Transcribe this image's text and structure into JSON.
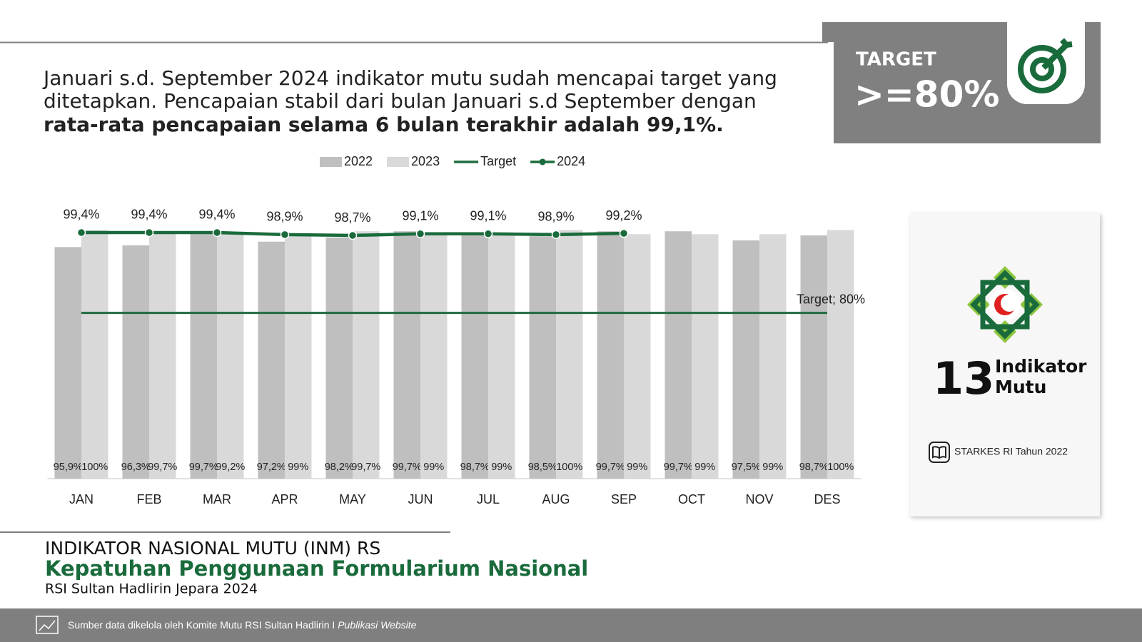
{
  "summary": {
    "lines": [
      "Januari s.d. September 2024 indikator mutu sudah mencapai target yang",
      "ditetapkan. Pencapaian stabil dari bulan Januari s.d September dengan",
      "rata-rata pencapaian selama 6 bulan terakhir adalah 99,1%."
    ]
  },
  "target_box": {
    "label": "TARGET",
    "value": ">=80%"
  },
  "side_card": {
    "number": "13",
    "label_lines": [
      "Indikator",
      "Mutu"
    ],
    "source": "STARKES RI Tahun 2022"
  },
  "footer": {
    "heading": "INDIKATOR NASIONAL MUTU (INM) RS",
    "title": "Kepatuhan Penggunaan Formularium Nasional",
    "subtitle": "RSI Sultan Hadlirin Jepara 2024",
    "source": "Sumber data dikelola oleh Komite Mutu RSI Sultan Hadlirin I",
    "source_italic": "Publikasi Website"
  },
  "chart_data": {
    "type": "bar",
    "categories": [
      "JAN",
      "FEB",
      "MAR",
      "APR",
      "MAY",
      "JUN",
      "JUL",
      "AUG",
      "SEP",
      "OCT",
      "NOV",
      "DES"
    ],
    "ylim": [
      40,
      100
    ],
    "series": [
      {
        "name": "2022",
        "type": "bar",
        "color": "#bfbfbf",
        "values": [
          95.9,
          96.3,
          99.7,
          97.2,
          98.2,
          99.7,
          98.7,
          98.5,
          99.7,
          99.7,
          97.5,
          98.7
        ],
        "value_labels": [
          "95,9%",
          "96,3%",
          "99,7%",
          "97,2%",
          "98,2%",
          "99,7%",
          "98,7%",
          "98,5%",
          "99,7%",
          "99,7%",
          "97,5%",
          "98,7%"
        ]
      },
      {
        "name": "2023",
        "type": "bar",
        "color": "#d9d9d9",
        "values": [
          100,
          99.7,
          99.2,
          99,
          99.7,
          99,
          99,
          100,
          99,
          99,
          99,
          100
        ],
        "value_labels": [
          "100%",
          "99,7%",
          "99,2%",
          "99%",
          "99,7%",
          "99%",
          "99%",
          "100%",
          "99%",
          "99%",
          "99%",
          "100%"
        ]
      },
      {
        "name": "Target",
        "type": "line",
        "color": "#1f6b40",
        "values": [
          80,
          80,
          80,
          80,
          80,
          80,
          80,
          80,
          80,
          80,
          80,
          80
        ],
        "value_labels": [
          null,
          null,
          null,
          null,
          null,
          null,
          null,
          null,
          null,
          null,
          null,
          "Target; 80%"
        ]
      },
      {
        "name": "2024",
        "type": "line",
        "color": "#1a6b3c",
        "markers": true,
        "values": [
          99.4,
          99.4,
          99.4,
          98.9,
          98.7,
          99.1,
          99.1,
          98.9,
          99.2,
          null,
          null,
          null
        ],
        "value_labels": [
          "99,4%",
          "99,4%",
          "99,4%",
          "98,9%",
          "98,7%",
          "99,1%",
          "99,1%",
          "98,9%",
          "99,2%",
          null,
          null,
          null
        ]
      }
    ]
  }
}
